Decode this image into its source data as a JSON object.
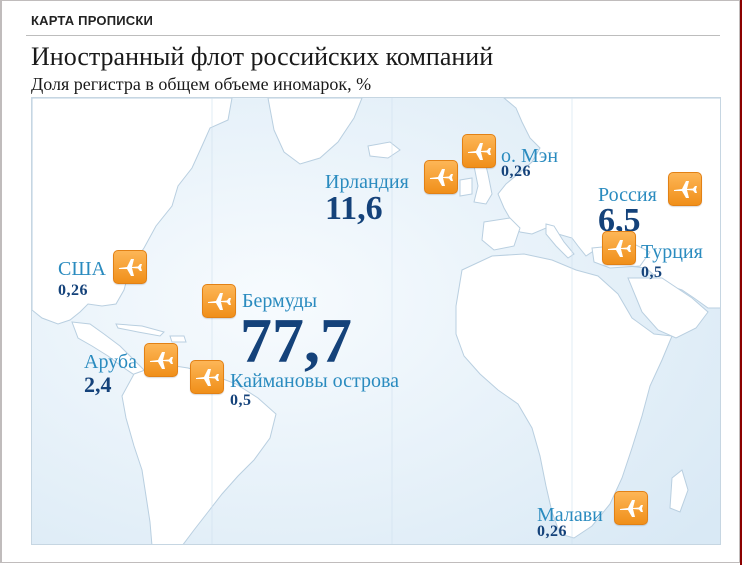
{
  "header": {
    "label": "КАРТА ПРОПИСКИ"
  },
  "title": "Иностранный флот российских компаний",
  "subtitle": "Доля регистра в общем объеме иномарок, %",
  "locations": {
    "usa": {
      "name": "США",
      "value": "0,26",
      "icon": "airplane-icon"
    },
    "aruba": {
      "name": "Аруба",
      "value": "2,4",
      "icon": "airplane-icon"
    },
    "bermuda": {
      "name": "Бермуды",
      "value": "77,7",
      "icon": "airplane-icon"
    },
    "cayman": {
      "name": "Каймановы острова",
      "value": "0,5",
      "icon": "airplane-icon"
    },
    "ireland": {
      "name": "Ирландия",
      "value": "11,6",
      "icon": "airplane-icon"
    },
    "isle_of_man": {
      "name": "о. Мэн",
      "value": "0,26",
      "icon": "airplane-icon"
    },
    "russia": {
      "name": "Россия",
      "value": "6,5",
      "icon": "airplane-icon"
    },
    "turkey": {
      "name": "Турция",
      "value": "0,5",
      "icon": "airplane-icon"
    },
    "malawi": {
      "name": "Малави",
      "value": "0,26",
      "icon": "airplane-icon"
    }
  },
  "colors": {
    "label": "#2a8bbf",
    "value": "#14427a",
    "pin": "#f5a030",
    "sea": "#e8f2fa",
    "land": "#ffffff"
  }
}
